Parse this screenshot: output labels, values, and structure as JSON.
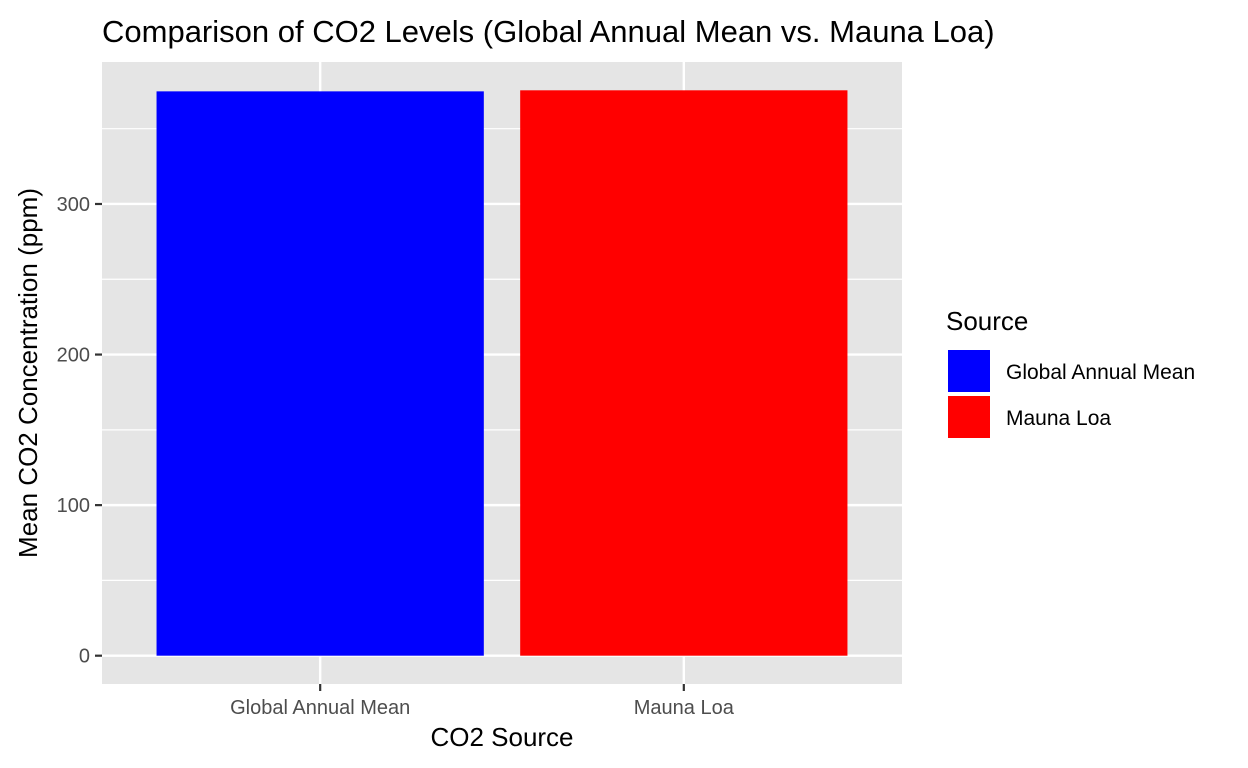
{
  "chart_data": {
    "type": "bar",
    "title": "Comparison of CO2 Levels (Global Annual Mean vs. Mauna Loa)",
    "xlabel": "CO2 Source",
    "ylabel": "Mean CO2 Concentration (ppm)",
    "categories": [
      "Global Annual Mean",
      "Mauna Loa"
    ],
    "values": [
      374.8,
      375.5
    ],
    "colors": [
      "#0000ff",
      "#ff0000"
    ],
    "ylim": [
      -18.8,
      394.3
    ],
    "yticks": [
      0,
      100,
      200,
      300
    ],
    "grid": true,
    "legend": {
      "title": "Source",
      "placement": "right",
      "entries": [
        {
          "label": "Global Annual Mean",
          "color": "#0000ff"
        },
        {
          "label": "Mauna Loa",
          "color": "#ff0000"
        }
      ]
    },
    "panel_background": "#e5e5e5",
    "grid_color": "#ffffff"
  }
}
